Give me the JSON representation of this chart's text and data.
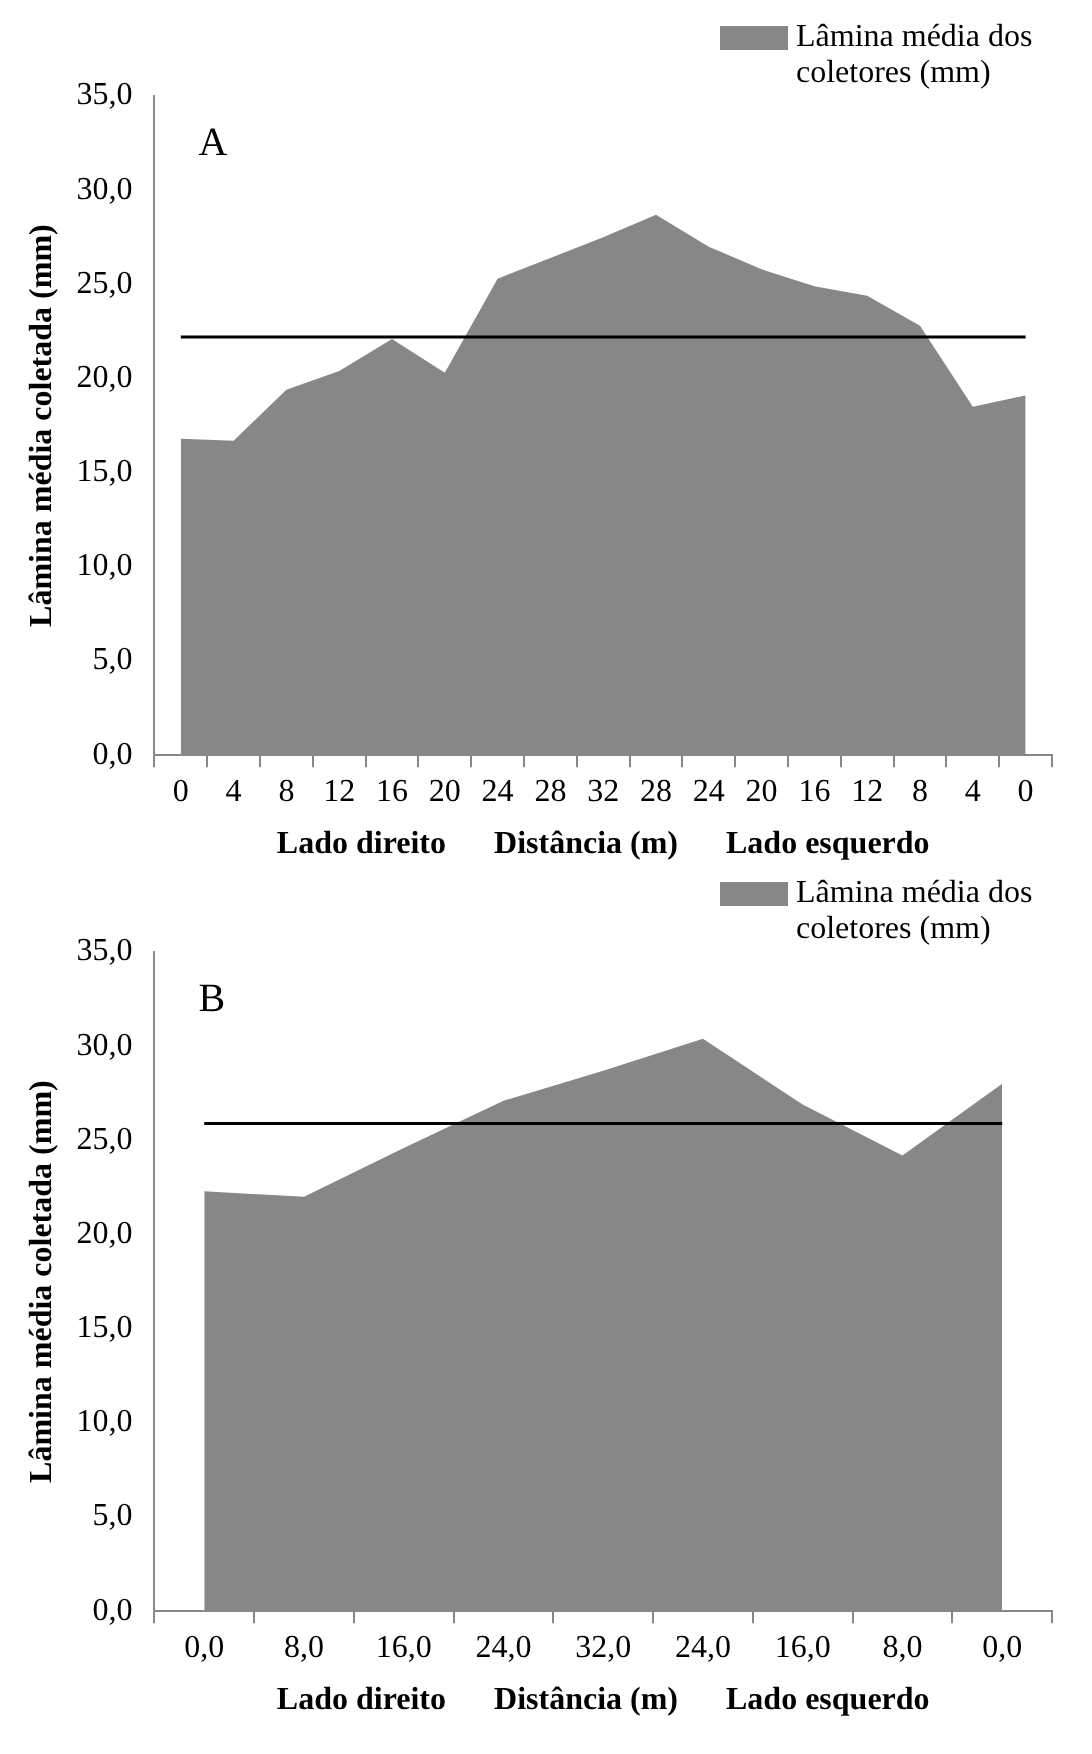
{
  "chart_data": [
    {
      "type": "area",
      "xlabel": "Lado direito      Distância (m)      Lado esquerdo",
      "ylabel": "Lâmina média coletada (mm)",
      "annotations": [
        "A"
      ],
      "legend": "top right",
      "categories": [
        "0",
        "4",
        "8",
        "12",
        "16",
        "20",
        "24",
        "28",
        "32",
        "28",
        "24",
        "20",
        "16",
        "12",
        "8",
        "4",
        "0"
      ],
      "series": [
        {
          "name": "Lâmina média dos coletores (mm)",
          "color": "#878787",
          "values": [
            16.8,
            16.7,
            19.4,
            20.4,
            22.1,
            20.3,
            25.3,
            26.4,
            27.5,
            28.7,
            27.0,
            25.8,
            24.9,
            24.4,
            22.8,
            18.5,
            19.1
          ]
        }
      ],
      "ylim": [
        0,
        35
      ],
      "yticks": [
        {
          "value": 0,
          "label": "0,0"
        },
        {
          "value": 5,
          "label": "5,0"
        },
        {
          "value": 10,
          "label": "10,0"
        },
        {
          "value": 15,
          "label": "15,0"
        },
        {
          "value": 20,
          "label": "20,0"
        },
        {
          "value": 25,
          "label": "25,0"
        },
        {
          "value": 30,
          "label": "30,0"
        },
        {
          "value": 35,
          "label": "35,0"
        }
      ],
      "ref_lines": [
        {
          "axis": "y",
          "value": 22.2,
          "color": "#000000"
        }
      ]
    },
    {
      "type": "area",
      "xlabel": "Lado direito      Distância (m)      Lado esquerdo",
      "ylabel": "Lâmina média coletada (mm)",
      "annotations": [
        "B"
      ],
      "legend": "top right",
      "categories": [
        "0,0",
        "8,0",
        "16,0",
        "24,0",
        "32,0",
        "24,0",
        "16,0",
        "8,0",
        "0,0"
      ],
      "series": [
        {
          "name": "Lâmina média dos coletores (mm)",
          "color": "#878787",
          "values": [
            22.3,
            22.0,
            24.6,
            27.1,
            28.7,
            30.4,
            26.9,
            24.2,
            28.0
          ]
        }
      ],
      "ylim": [
        0,
        35
      ],
      "yticks": [
        {
          "value": 0,
          "label": "0,0"
        },
        {
          "value": 5,
          "label": "5,0"
        },
        {
          "value": 10,
          "label": "10,0"
        },
        {
          "value": 15,
          "label": "15,0"
        },
        {
          "value": 20,
          "label": "20,0"
        },
        {
          "value": 25,
          "label": "25,0"
        },
        {
          "value": 30,
          "label": "30,0"
        },
        {
          "value": 35,
          "label": "35,0"
        }
      ],
      "ref_lines": [
        {
          "axis": "y",
          "value": 25.9,
          "color": "#000000"
        }
      ]
    }
  ]
}
